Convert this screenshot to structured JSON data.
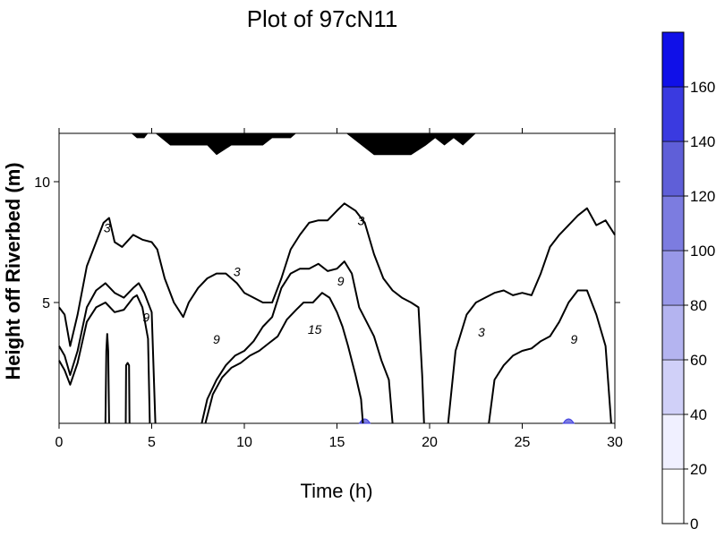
{
  "chart_data": {
    "type": "contour",
    "title": "Plot of 97cN11",
    "xlabel": "Time (h)",
    "ylabel": "Height off Riverbed (m)",
    "xlim": [
      0,
      30
    ],
    "ylim": [
      0,
      12
    ],
    "x_ticks": [
      "0",
      "5",
      "10",
      "15",
      "20",
      "25",
      "30"
    ],
    "y_ticks": [
      "5",
      "10"
    ],
    "contour_labels": [
      "3",
      "3",
      "3",
      "3",
      "9",
      "9",
      "9",
      "9",
      "15"
    ],
    "colorbar": {
      "ticks": [
        "0",
        "20",
        "40",
        "60",
        "80",
        "100",
        "120",
        "140",
        "160"
      ],
      "colors": [
        "#ffffff",
        "#f0f0ff",
        "#d0d0f8",
        "#b4b4f0",
        "#9898e8",
        "#7c7ce0",
        "#5f5fd8",
        "#3a3ae0",
        "#1010e8",
        "#000000"
      ]
    },
    "surface_mask": [
      [
        0,
        12
      ],
      [
        3.9,
        12
      ],
      [
        4.2,
        11.8
      ],
      [
        4.6,
        11.8
      ],
      [
        4.8,
        12
      ],
      [
        5.2,
        12
      ],
      [
        6,
        11.5
      ],
      [
        8,
        11.5
      ],
      [
        8.5,
        11.1
      ],
      [
        9.3,
        11.5
      ],
      [
        11,
        11.5
      ],
      [
        11.5,
        11.8
      ],
      [
        12.5,
        11.8
      ],
      [
        12.8,
        12
      ],
      [
        15.5,
        12
      ],
      [
        17,
        11.1
      ],
      [
        19,
        11.1
      ],
      [
        19.8,
        11.5
      ],
      [
        20.3,
        11.8
      ],
      [
        20.8,
        11.5
      ],
      [
        21.3,
        11.8
      ],
      [
        21.8,
        11.5
      ],
      [
        22.5,
        12
      ],
      [
        30,
        12
      ]
    ],
    "contours": [
      {
        "label": "3",
        "points": [
          [
            0,
            4.8
          ],
          [
            0.3,
            4.5
          ],
          [
            0.6,
            3.2
          ],
          [
            1,
            4.5
          ],
          [
            1.5,
            6.5
          ],
          [
            2,
            7.5
          ],
          [
            2.4,
            8.3
          ],
          [
            2.7,
            8.5
          ],
          [
            3,
            7.5
          ],
          [
            3.4,
            7.3
          ],
          [
            4,
            7.8
          ],
          [
            4.5,
            7.6
          ],
          [
            5,
            7.5
          ],
          [
            5.3,
            7.2
          ],
          [
            5.7,
            6
          ],
          [
            6.2,
            5
          ],
          [
            6.7,
            4.4
          ],
          [
            7,
            5
          ],
          [
            7.5,
            5.6
          ],
          [
            8,
            6
          ],
          [
            8.5,
            6.2
          ],
          [
            9,
            6.2
          ],
          [
            9.6,
            5.8
          ],
          [
            10,
            5.4
          ],
          [
            10.5,
            5.2
          ],
          [
            11,
            5
          ],
          [
            11.5,
            5
          ],
          [
            12,
            6
          ],
          [
            12.5,
            7.2
          ],
          [
            13,
            7.8
          ],
          [
            13.5,
            8.3
          ],
          [
            14,
            8.4
          ],
          [
            14.5,
            8.4
          ],
          [
            15,
            8.8
          ],
          [
            15.4,
            9.1
          ],
          [
            16,
            8.8
          ],
          [
            16.5,
            8.3
          ],
          [
            17,
            7
          ],
          [
            17.5,
            6
          ],
          [
            18,
            5.5
          ],
          [
            18.5,
            5.2
          ],
          [
            19,
            5
          ],
          [
            19.4,
            4.8
          ],
          [
            19.6,
            2
          ],
          [
            19.7,
            0
          ]
        ]
      },
      {
        "label": "3",
        "points": [
          [
            21,
            0
          ],
          [
            21.4,
            3
          ],
          [
            22,
            4.5
          ],
          [
            22.5,
            5
          ],
          [
            23,
            5.2
          ],
          [
            23.5,
            5.4
          ],
          [
            24,
            5.5
          ],
          [
            24.5,
            5.3
          ],
          [
            25,
            5.4
          ],
          [
            25.5,
            5.3
          ],
          [
            26,
            6.2
          ],
          [
            26.5,
            7.3
          ],
          [
            27,
            7.8
          ],
          [
            27.5,
            8.2
          ],
          [
            28,
            8.6
          ],
          [
            28.5,
            8.9
          ],
          [
            29,
            8.2
          ],
          [
            29.5,
            8.4
          ],
          [
            30,
            7.8
          ]
        ]
      },
      {
        "label": "9",
        "points": [
          [
            0,
            3.2
          ],
          [
            0.3,
            2.8
          ],
          [
            0.6,
            2
          ],
          [
            1,
            3
          ],
          [
            1.5,
            4.8
          ],
          [
            2,
            5.5
          ],
          [
            2.5,
            5.8
          ],
          [
            3,
            5.4
          ],
          [
            3.5,
            5.2
          ],
          [
            4,
            5.6
          ],
          [
            4.3,
            5.8
          ],
          [
            4.6,
            5.4
          ],
          [
            5,
            4.6
          ],
          [
            5.2,
            0
          ]
        ]
      },
      {
        "label": "9",
        "points": [
          [
            0,
            2.6
          ],
          [
            0.3,
            2.2
          ],
          [
            0.6,
            1.6
          ],
          [
            1,
            2.5
          ],
          [
            1.5,
            4.2
          ],
          [
            2,
            4.8
          ],
          [
            2.5,
            5
          ],
          [
            3,
            4.6
          ],
          [
            3.5,
            4.7
          ],
          [
            4,
            5.2
          ],
          [
            4.2,
            5.3
          ],
          [
            4.5,
            4.8
          ],
          [
            4.8,
            3.5
          ],
          [
            4.9,
            0
          ]
        ]
      },
      {
        "label": "9",
        "points": [
          [
            7.7,
            0
          ],
          [
            8,
            1
          ],
          [
            8.5,
            1.8
          ],
          [
            9,
            2.4
          ],
          [
            9.5,
            2.8
          ],
          [
            10,
            3
          ],
          [
            10.5,
            3.4
          ],
          [
            11,
            4
          ],
          [
            11.5,
            4.4
          ],
          [
            12,
            5.6
          ],
          [
            12.5,
            6.2
          ],
          [
            13,
            6.4
          ],
          [
            13.5,
            6.4
          ],
          [
            14,
            6.6
          ],
          [
            14.5,
            6.3
          ],
          [
            15,
            6.4
          ],
          [
            15.4,
            6.7
          ],
          [
            15.8,
            6.2
          ],
          [
            16.2,
            4.8
          ],
          [
            16.6,
            4.2
          ],
          [
            17,
            3.6
          ],
          [
            17.4,
            2.6
          ],
          [
            17.8,
            1.8
          ],
          [
            18,
            0
          ]
        ]
      },
      {
        "label": "9",
        "points": [
          [
            23.2,
            0
          ],
          [
            23.5,
            1.8
          ],
          [
            24,
            2.4
          ],
          [
            24.5,
            2.8
          ],
          [
            25,
            3
          ],
          [
            25.5,
            3.1
          ],
          [
            26,
            3.4
          ],
          [
            26.5,
            3.6
          ],
          [
            27,
            4.2
          ],
          [
            27.5,
            5
          ],
          [
            28,
            5.5
          ],
          [
            28.5,
            5.5
          ],
          [
            29,
            4.5
          ],
          [
            29.5,
            3.2
          ],
          [
            29.8,
            0
          ]
        ]
      },
      {
        "label": "15",
        "points": [
          [
            7.9,
            0
          ],
          [
            8.3,
            1.2
          ],
          [
            8.8,
            1.9
          ],
          [
            9.3,
            2.3
          ],
          [
            9.8,
            2.5
          ],
          [
            10.3,
            2.8
          ],
          [
            10.8,
            3
          ],
          [
            11.3,
            3.3
          ],
          [
            11.8,
            3.6
          ],
          [
            12.3,
            4.3
          ],
          [
            12.8,
            4.7
          ],
          [
            13.2,
            5
          ],
          [
            13.7,
            5
          ],
          [
            14.2,
            5.4
          ],
          [
            14.6,
            5.2
          ],
          [
            15,
            4.6
          ],
          [
            15.3,
            4
          ],
          [
            15.6,
            3.2
          ],
          [
            16,
            2
          ],
          [
            16.3,
            1
          ],
          [
            16.4,
            0
          ]
        ]
      },
      {
        "label": "",
        "points": [
          [
            2.5,
            0
          ],
          [
            2.55,
            3
          ],
          [
            2.6,
            3.7
          ],
          [
            2.65,
            3
          ],
          [
            2.7,
            0
          ]
        ]
      },
      {
        "label": "",
        "points": [
          [
            3.6,
            0
          ],
          [
            3.62,
            2.4
          ],
          [
            3.7,
            2.5
          ],
          [
            3.78,
            2.4
          ],
          [
            3.8,
            0
          ]
        ]
      }
    ],
    "intensity_patches": [
      {
        "x": 16.5,
        "y": 0,
        "value": 30
      },
      {
        "x": 27.5,
        "y": 0,
        "value": 40
      }
    ]
  }
}
